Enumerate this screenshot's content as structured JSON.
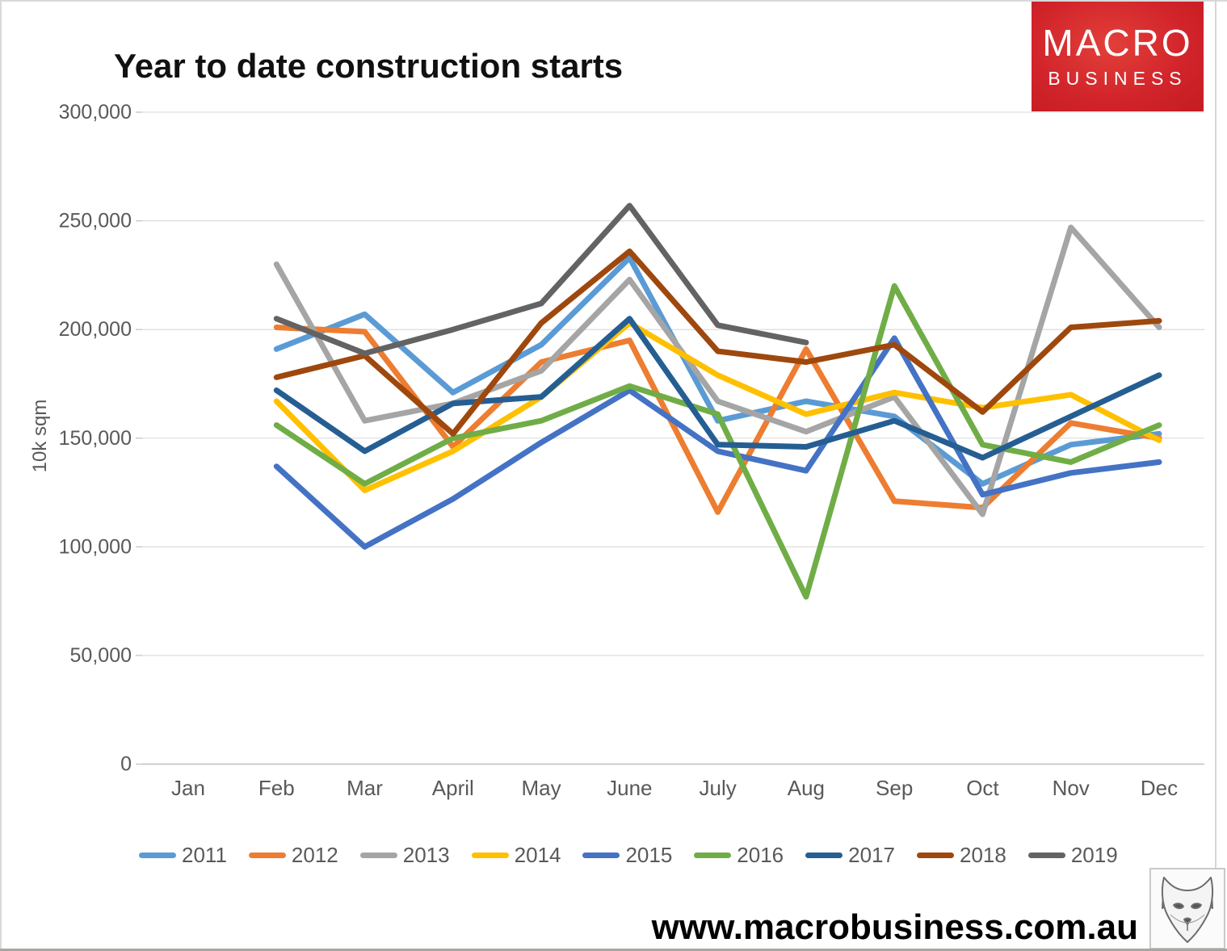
{
  "header": {
    "title": "Year to date construction starts"
  },
  "logo": {
    "line1": "MACRO",
    "line2": "BUSINESS",
    "bg": "#d1232a",
    "text_color": "#ffffff"
  },
  "footer": {
    "website": "www.macrobusiness.com.au"
  },
  "axis_style": {
    "label_color": "#595959",
    "gridline_color": "#d9d9d9",
    "axisline_color": "#bfbfbf"
  },
  "chart_data": {
    "type": "line",
    "title": "Year to date construction starts",
    "xlabel": "",
    "ylabel": "10k sqm",
    "ylim": [
      0,
      300000
    ],
    "ytick_step": 50000,
    "grid": true,
    "legend_position": "bottom",
    "categories": [
      "Jan",
      "Feb",
      "Mar",
      "April",
      "May",
      "June",
      "July",
      "Aug",
      "Sep",
      "Oct",
      "Nov",
      "Dec"
    ],
    "yticks": [
      {
        "value": 0,
        "label": "0"
      },
      {
        "value": 50000,
        "label": "50,000"
      },
      {
        "value": 100000,
        "label": "100,000"
      },
      {
        "value": 150000,
        "label": "150,000"
      },
      {
        "value": 200000,
        "label": "200,000"
      },
      {
        "value": 250000,
        "label": "250,000"
      },
      {
        "value": 300000,
        "label": "300,000"
      }
    ],
    "series": [
      {
        "name": "2011",
        "color": "#5B9BD5",
        "values": [
          null,
          191000,
          207000,
          171000,
          193000,
          233000,
          158000,
          167000,
          160000,
          129000,
          147000,
          152000
        ]
      },
      {
        "name": "2012",
        "color": "#ED7D31",
        "values": [
          null,
          201000,
          199000,
          146000,
          185000,
          195000,
          116000,
          191000,
          121000,
          118000,
          157000,
          150000
        ]
      },
      {
        "name": "2013",
        "color": "#A5A5A5",
        "values": [
          null,
          230000,
          158000,
          166000,
          181000,
          223000,
          167000,
          153000,
          169000,
          115000,
          247000,
          201000
        ]
      },
      {
        "name": "2014",
        "color": "#FFC000",
        "values": [
          null,
          167000,
          126000,
          144000,
          169000,
          203000,
          179000,
          161000,
          171000,
          164000,
          170000,
          149000
        ]
      },
      {
        "name": "2015",
        "color": "#4472C4",
        "values": [
          null,
          137000,
          100000,
          122000,
          148000,
          172000,
          144000,
          135000,
          196000,
          124000,
          134000,
          139000
        ]
      },
      {
        "name": "2016",
        "color": "#70AD47",
        "values": [
          null,
          156000,
          129000,
          150000,
          158000,
          174000,
          161000,
          77000,
          220000,
          147000,
          139000,
          156000
        ]
      },
      {
        "name": "2017",
        "color": "#255E92",
        "values": [
          null,
          172000,
          144000,
          166000,
          169000,
          205000,
          147000,
          146000,
          158000,
          141000,
          160000,
          179000
        ]
      },
      {
        "name": "2018",
        "color": "#9E480E",
        "values": [
          null,
          178000,
          188000,
          152000,
          203000,
          236000,
          190000,
          185000,
          193000,
          162000,
          201000,
          204000
        ]
      },
      {
        "name": "2019",
        "color": "#636363",
        "values": [
          null,
          205000,
          189000,
          200000,
          212000,
          257000,
          202000,
          194000,
          null,
          null,
          null,
          null
        ]
      }
    ]
  }
}
